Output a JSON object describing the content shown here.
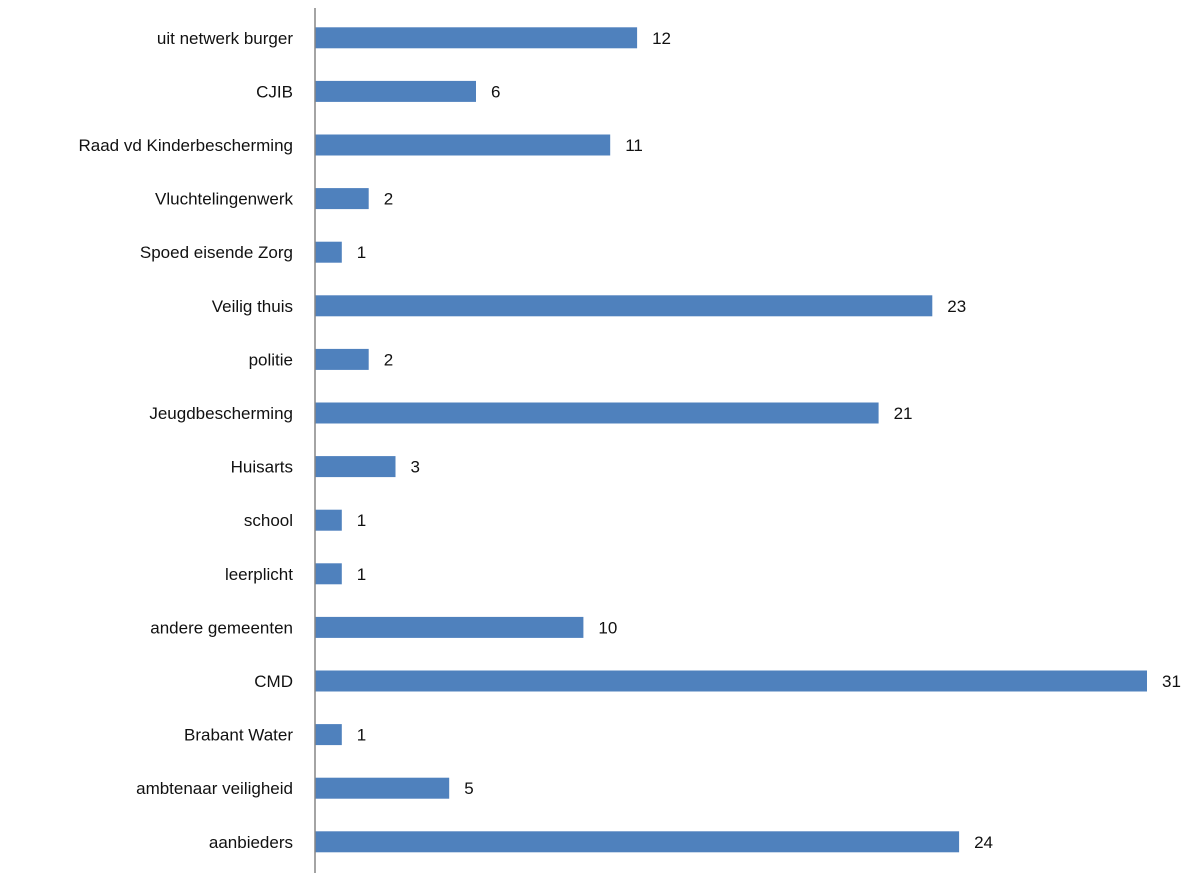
{
  "chart_data": {
    "type": "bar",
    "orientation": "horizontal",
    "categories": [
      "uit netwerk burger",
      "CJIB",
      "Raad vd Kinderbescherming",
      "Vluchtelingenwerk",
      "Spoed eisende Zorg",
      "Veilig thuis",
      "politie",
      "Jeugdbescherming",
      "Huisarts",
      "school",
      "leerplicht",
      "andere gemeenten",
      "CMD",
      "Brabant Water",
      "ambtenaar veiligheid",
      "aanbieders"
    ],
    "values": [
      12,
      6,
      11,
      2,
      1,
      23,
      2,
      21,
      3,
      1,
      1,
      10,
      31,
      1,
      5,
      24
    ],
    "title": "",
    "xlabel": "",
    "ylabel": "",
    "xlim": [
      0,
      31
    ],
    "grid": false,
    "legend": "none",
    "data_labels": true,
    "colors": {
      "bar": "#4f81bd",
      "axis": "#868686",
      "text": "#111111"
    }
  }
}
